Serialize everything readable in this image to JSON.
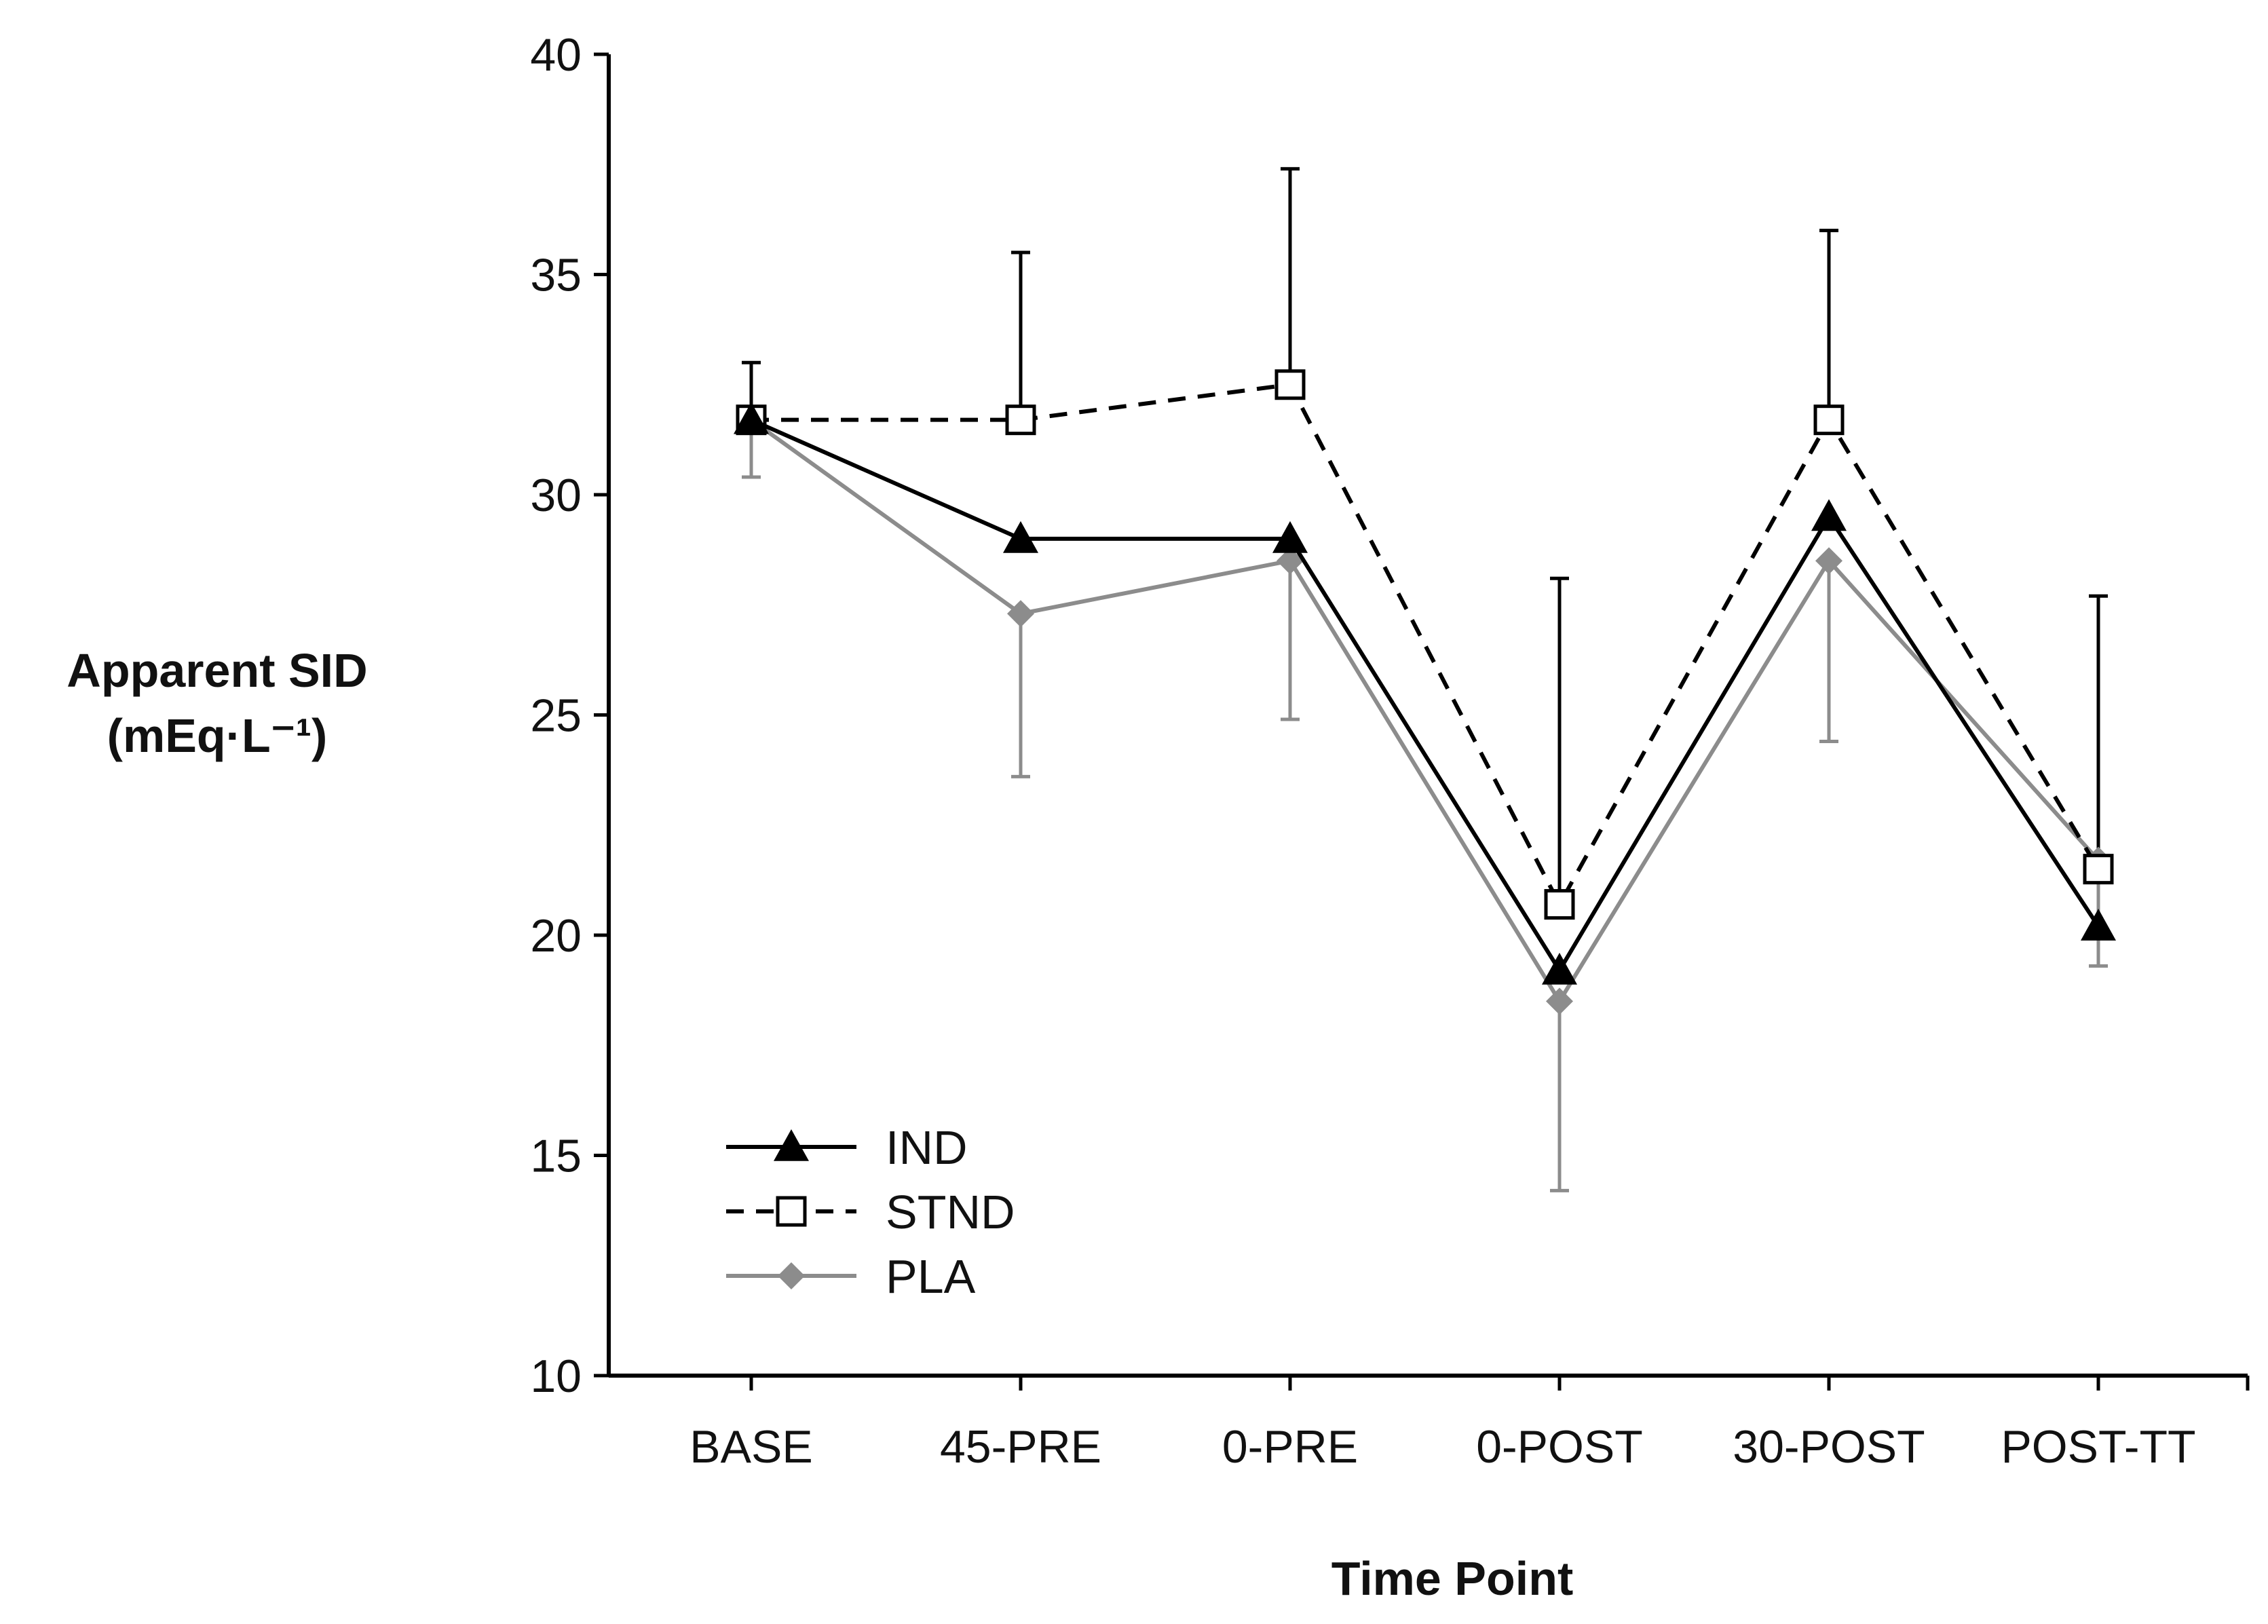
{
  "chart_data": {
    "type": "line",
    "title": "",
    "xlabel": "Time Point",
    "ylabel_line1": "Apparent SID",
    "ylabel_line2": "(mEq·L⁻¹)",
    "ylim": [
      10,
      40
    ],
    "yticks": [
      10,
      15,
      20,
      25,
      30,
      35,
      40
    ],
    "ytick_labels": [
      "10",
      "15",
      "20",
      "25",
      "30",
      "35",
      "40"
    ],
    "categories": [
      "BASE",
      "45-PRE",
      "0-PRE",
      "0-POST",
      "30-POST",
      "POST-TT"
    ],
    "grid": false,
    "legend_position": "bottom-left",
    "series": [
      {
        "key": "ind",
        "name": "IND",
        "color": "#000000",
        "dash": "solid",
        "marker": "triangle",
        "values": [
          31.7,
          29.0,
          29.0,
          19.2,
          29.5,
          20.2
        ],
        "error_upper": [
          33.0,
          null,
          null,
          null,
          null,
          null
        ],
        "error_lower": [
          null,
          null,
          null,
          null,
          null,
          null
        ]
      },
      {
        "key": "stnd",
        "name": "STND",
        "color": "#000000",
        "dash": "dashed",
        "marker": "square-open",
        "values": [
          31.7,
          31.7,
          32.5,
          20.7,
          31.7,
          21.5
        ],
        "error_upper": [
          null,
          35.5,
          37.4,
          28.1,
          36.0,
          27.7
        ],
        "error_lower": [
          null,
          null,
          null,
          null,
          null,
          null
        ]
      },
      {
        "key": "pla",
        "name": "PLA",
        "color": "#8c8c8c",
        "dash": "solid",
        "marker": "diamond",
        "values": [
          31.7,
          27.3,
          28.5,
          18.5,
          28.5,
          21.7
        ],
        "error_upper": [
          null,
          null,
          null,
          null,
          null,
          null
        ],
        "error_lower": [
          30.4,
          23.6,
          24.9,
          14.2,
          24.4,
          19.3
        ]
      }
    ]
  }
}
